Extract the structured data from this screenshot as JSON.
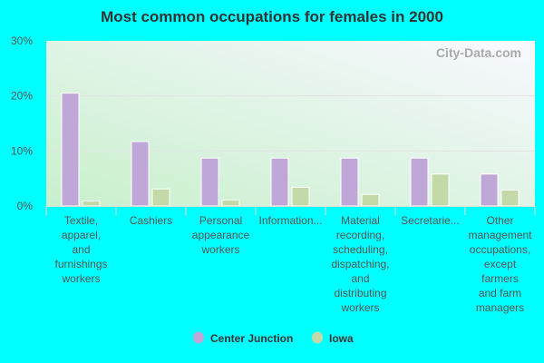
{
  "chart_data": {
    "type": "bar",
    "title": "Most common occupations for females in 2000",
    "categories": [
      [
        "Textile,",
        "apparel,",
        "and",
        "furnishings",
        "workers"
      ],
      [
        "Cashiers"
      ],
      [
        "Personal",
        "appearance",
        "workers"
      ],
      [
        "Information..."
      ],
      [
        "Material",
        "recording,",
        "scheduling,",
        "dispatching,",
        "and",
        "distributing",
        "workers"
      ],
      [
        "Secretarie..."
      ],
      [
        "Other",
        "management",
        "occupations,",
        "except",
        "farmers",
        "and farm",
        "managers"
      ]
    ],
    "series": [
      {
        "name": "Center Junction",
        "color": "#bfa8d8",
        "values": [
          20.5,
          11.7,
          8.7,
          8.7,
          8.7,
          8.7,
          5.8
        ]
      },
      {
        "name": "Iowa",
        "color": "#c4d9a8",
        "values": [
          0.9,
          3.1,
          1.1,
          3.4,
          2.1,
          5.8,
          2.9
        ]
      }
    ],
    "ylim": [
      0,
      30
    ],
    "yticks": [
      "0%",
      "10%",
      "20%",
      "30%"
    ],
    "ytick_values": [
      0,
      10,
      20,
      30
    ],
    "grid": true,
    "legend": "bottom",
    "watermark": "City-Data.com"
  }
}
